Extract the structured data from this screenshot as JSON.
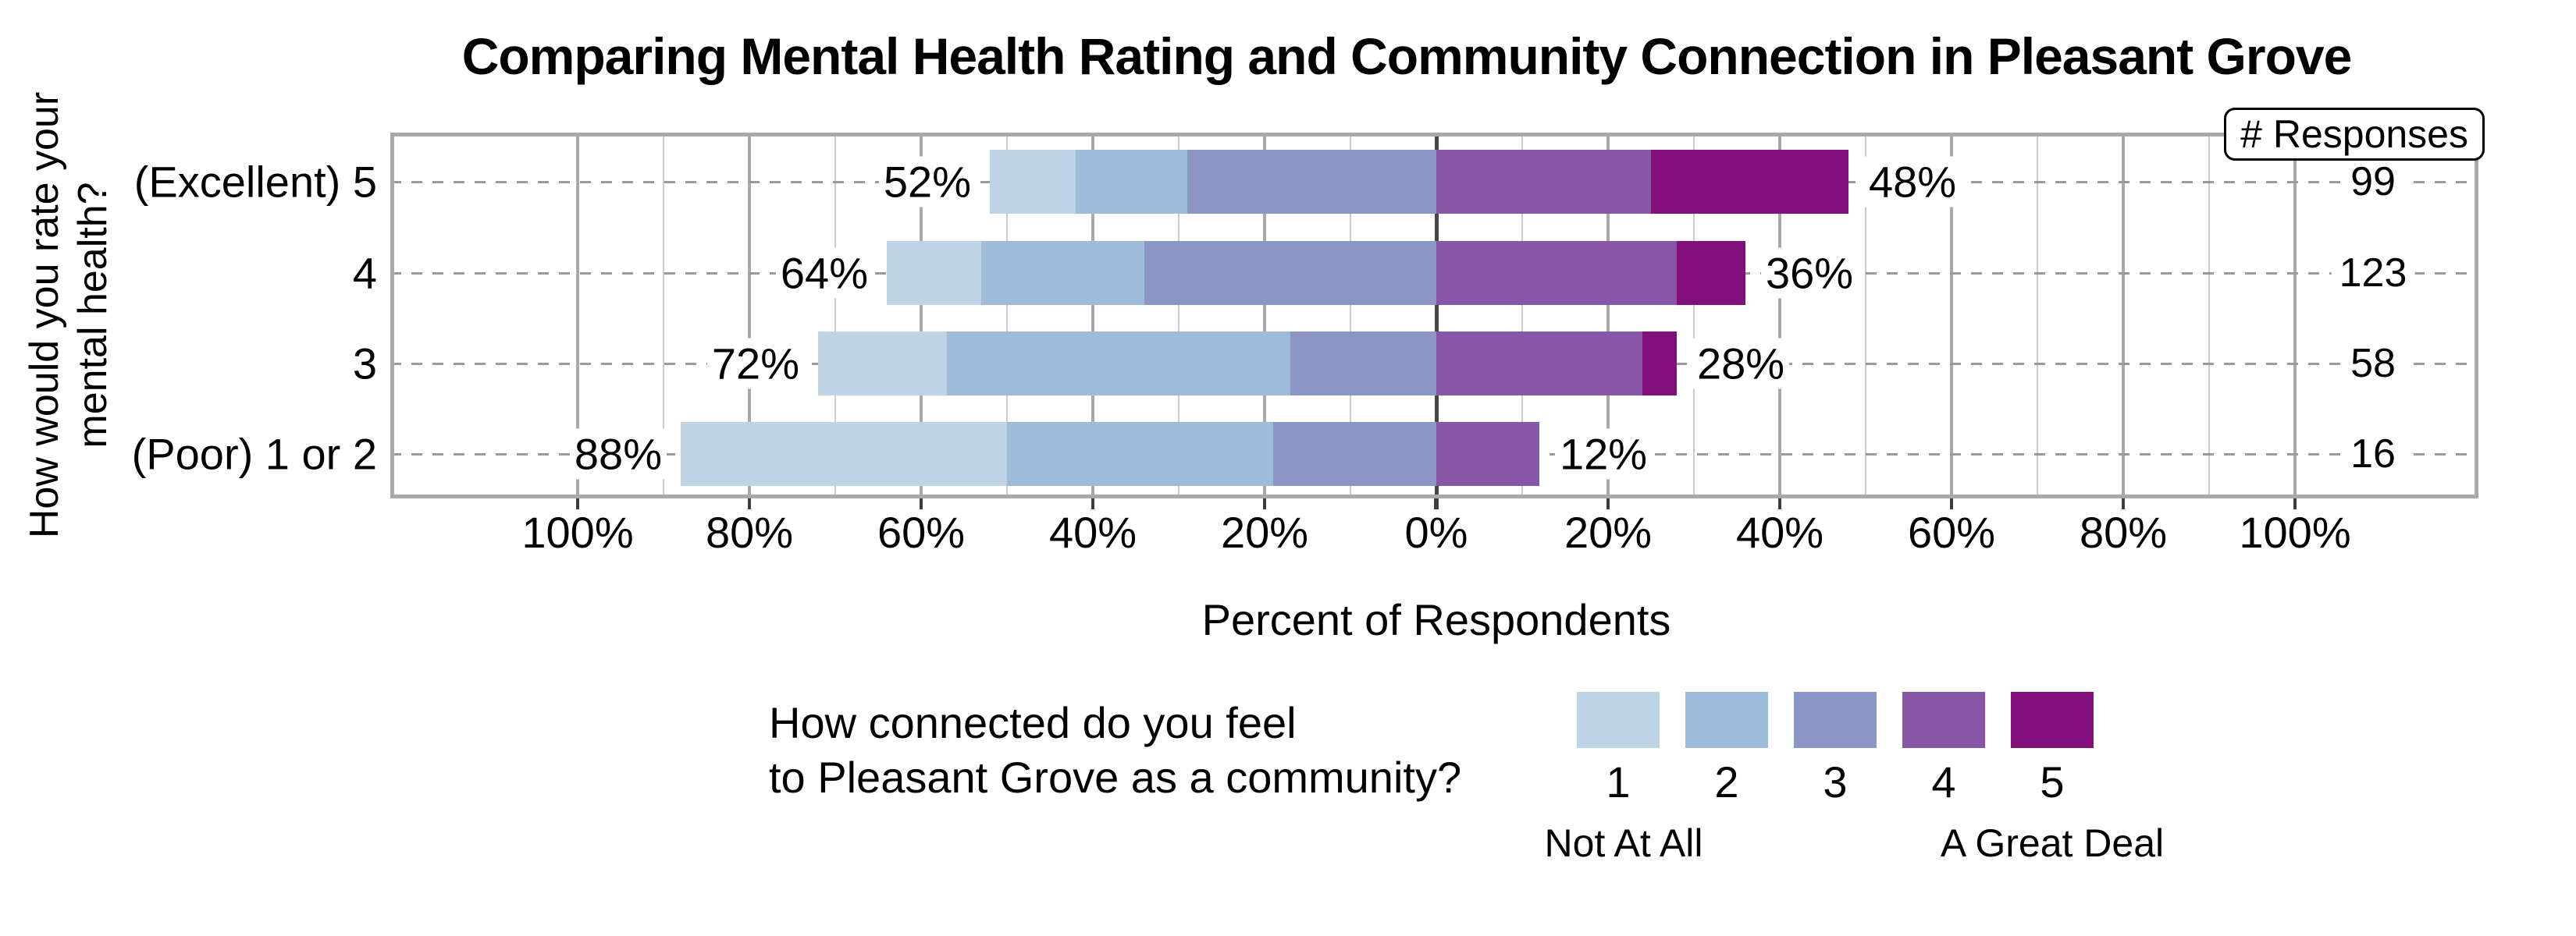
{
  "title": "Comparing Mental Health Rating and Community Connection in Pleasant Grove",
  "responses_header": "# Responses",
  "y_axis_title": {
    "line1": "How would you rate your",
    "line2": "mental health?"
  },
  "axis": {
    "xlabel": "Percent of Respondents",
    "tick_values": [
      -100,
      -80,
      -60,
      -40,
      -20,
      0,
      20,
      40,
      60,
      80,
      100
    ],
    "tick_labels": [
      "100%",
      "80%",
      "60%",
      "40%",
      "20%",
      "0%",
      "20%",
      "40%",
      "60%",
      "80%",
      "100%"
    ]
  },
  "legend": {
    "title_line1": "How connected do you feel",
    "title_line2": "to Pleasant Grove as a community?",
    "items": [
      {
        "label": "1",
        "color": "#bfd3e6"
      },
      {
        "label": "2",
        "color": "#9ebcda"
      },
      {
        "label": "3",
        "color": "#8c96c6"
      },
      {
        "label": "4",
        "color": "#8856a7"
      },
      {
        "label": "5",
        "color": "#810f7c"
      }
    ],
    "left_anchor": "Not At All",
    "right_anchor": "A Great Deal"
  },
  "chart_data": {
    "type": "bar",
    "subtype": "diverging_stacked_likert",
    "title": "Comparing Mental Health Rating and Community Connection in Pleasant Grove",
    "xlabel": "Percent of Respondents",
    "x_range_pct": [
      -100,
      100
    ],
    "gridlines_every_pct": 10,
    "labeled_ticks_every_pct": 20,
    "categories": [
      "(Excellent) 5",
      "4",
      "3",
      "(Poor) 1 or 2"
    ],
    "series": [
      {
        "name": "1",
        "color": "#bfd3e6",
        "side": "left",
        "values": [
          10,
          11,
          15,
          38
        ]
      },
      {
        "name": "2",
        "color": "#9ebcda",
        "side": "left",
        "values": [
          13,
          19,
          40,
          31
        ]
      },
      {
        "name": "3",
        "color": "#8c96c6",
        "side": "left",
        "values": [
          29,
          34,
          17,
          19
        ]
      },
      {
        "name": "4",
        "color": "#8856a7",
        "side": "right",
        "values": [
          25,
          28,
          24,
          12
        ]
      },
      {
        "name": "5",
        "color": "#810f7c",
        "side": "right",
        "values": [
          23,
          8,
          4,
          0
        ]
      }
    ],
    "left_totals_pct": [
      52,
      64,
      72,
      88
    ],
    "right_totals_pct": [
      48,
      36,
      28,
      12
    ],
    "left_labels": [
      "52%",
      "64%",
      "72%",
      "88%"
    ],
    "right_labels": [
      "48%",
      "36%",
      "28%",
      "12%"
    ],
    "n_responses": [
      99,
      123,
      58,
      16
    ],
    "legend_position": "bottom"
  }
}
